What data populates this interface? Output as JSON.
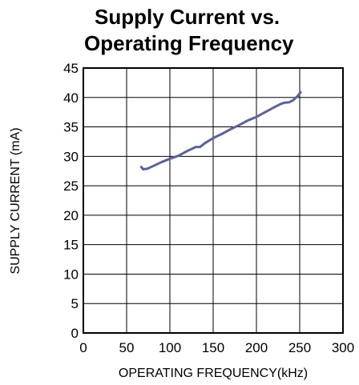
{
  "chart_data": {
    "type": "line",
    "title_lines": [
      "Supply Current vs.",
      "Operating Frequency"
    ],
    "xlabel": "OPERATING FREQUENCY(kHz)",
    "ylabel": "SUPPLY CURRENT (mA)",
    "xlim": [
      0,
      300
    ],
    "ylim": [
      0,
      45
    ],
    "xticks": [
      "0",
      "50",
      "100",
      "150",
      "200",
      "250",
      "300"
    ],
    "yticks": [
      "0",
      "5",
      "10",
      "15",
      "20",
      "25",
      "30",
      "35",
      "40",
      "45"
    ],
    "grid": true,
    "line_color": "#5b6296",
    "series": [
      {
        "x": [
          67,
          69,
          74,
          80,
          90,
          100,
          110,
          120,
          130,
          135,
          140,
          150,
          160,
          170,
          180,
          190,
          195,
          200,
          210,
          220,
          228,
          232,
          238,
          242,
          248,
          251
        ],
        "y": [
          28.2,
          27.8,
          27.9,
          28.3,
          29.0,
          29.6,
          30.1,
          30.9,
          31.6,
          31.6,
          32.2,
          33.1,
          33.8,
          34.6,
          35.3,
          36.1,
          36.4,
          36.7,
          37.5,
          38.3,
          38.9,
          39.1,
          39.2,
          39.5,
          40.3,
          40.9
        ]
      }
    ]
  }
}
